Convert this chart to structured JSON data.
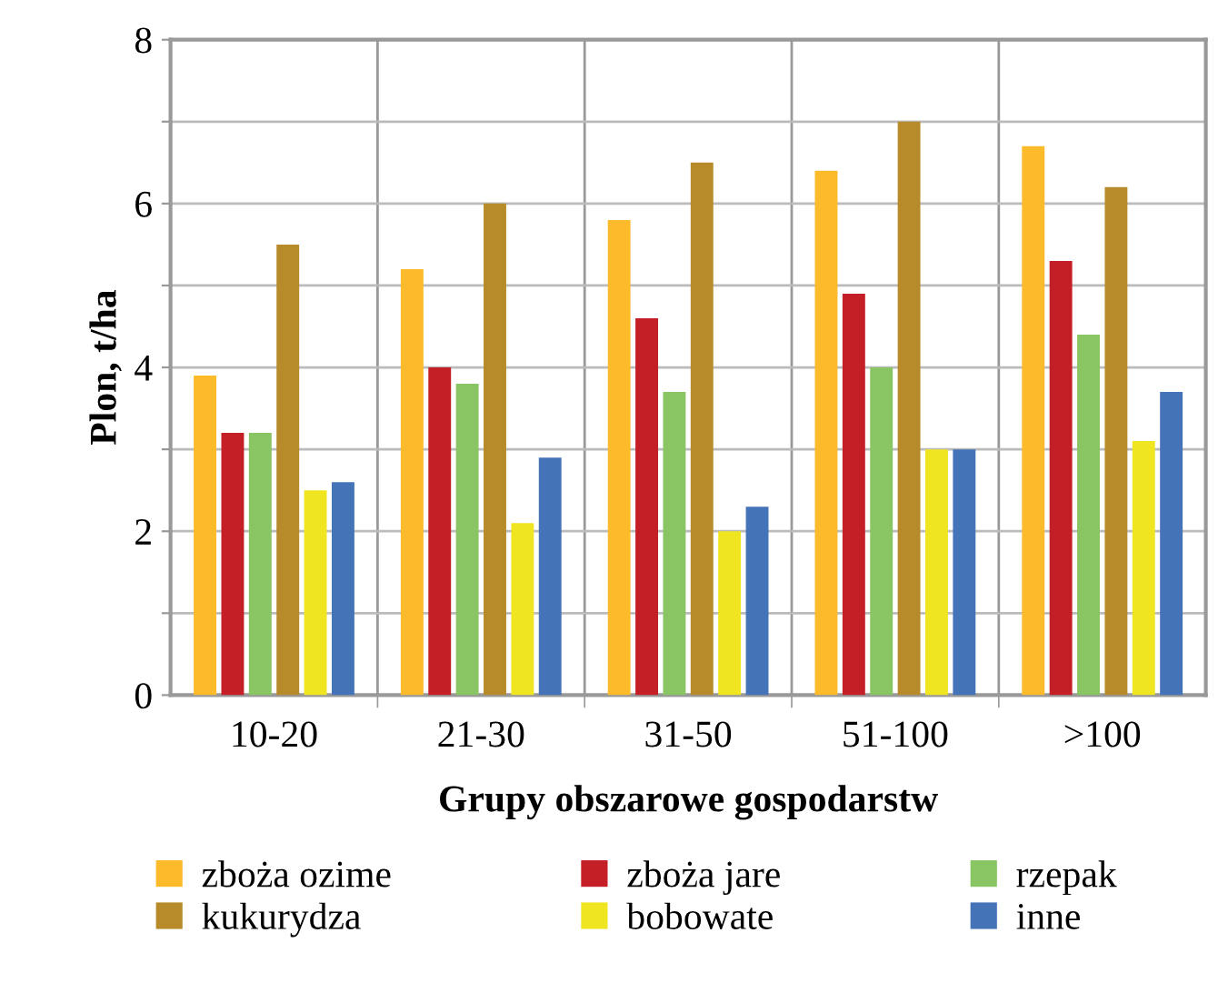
{
  "chart_data": {
    "type": "bar",
    "xlabel": "Grupy obszarowe gospodarstw",
    "ylabel": "Plon, t/ha",
    "categories": [
      "10-20",
      "21-30",
      "31-50",
      "51-100",
      ">100"
    ],
    "series": [
      {
        "name": "zboża ozime",
        "color": "#fdba2a",
        "values": [
          3.9,
          5.2,
          5.8,
          6.4,
          6.7
        ]
      },
      {
        "name": "zboża jare",
        "color": "#c41e26",
        "values": [
          3.2,
          4.0,
          4.6,
          4.9,
          5.3
        ]
      },
      {
        "name": "rzepak",
        "color": "#89c562",
        "values": [
          3.2,
          3.8,
          3.7,
          4.0,
          4.4
        ]
      },
      {
        "name": "kukurydza",
        "color": "#b88b2a",
        "values": [
          5.5,
          6.0,
          6.5,
          7.0,
          6.2
        ]
      },
      {
        "name": "bobowate",
        "color": "#efe520",
        "values": [
          2.5,
          2.1,
          2.0,
          3.0,
          3.1
        ]
      },
      {
        "name": "inne",
        "color": "#4473b8",
        "values": [
          2.6,
          2.9,
          2.3,
          3.0,
          3.7
        ]
      }
    ],
    "ylim": [
      0,
      8
    ],
    "yticks": [
      0,
      {
        "value": 1,
        "label": null
      },
      2,
      {
        "value": 3,
        "label": null
      },
      4,
      {
        "value": 5,
        "label": null
      },
      6,
      {
        "value": 7,
        "label": null
      },
      8
    ],
    "grid": true,
    "legend": "bottom"
  }
}
